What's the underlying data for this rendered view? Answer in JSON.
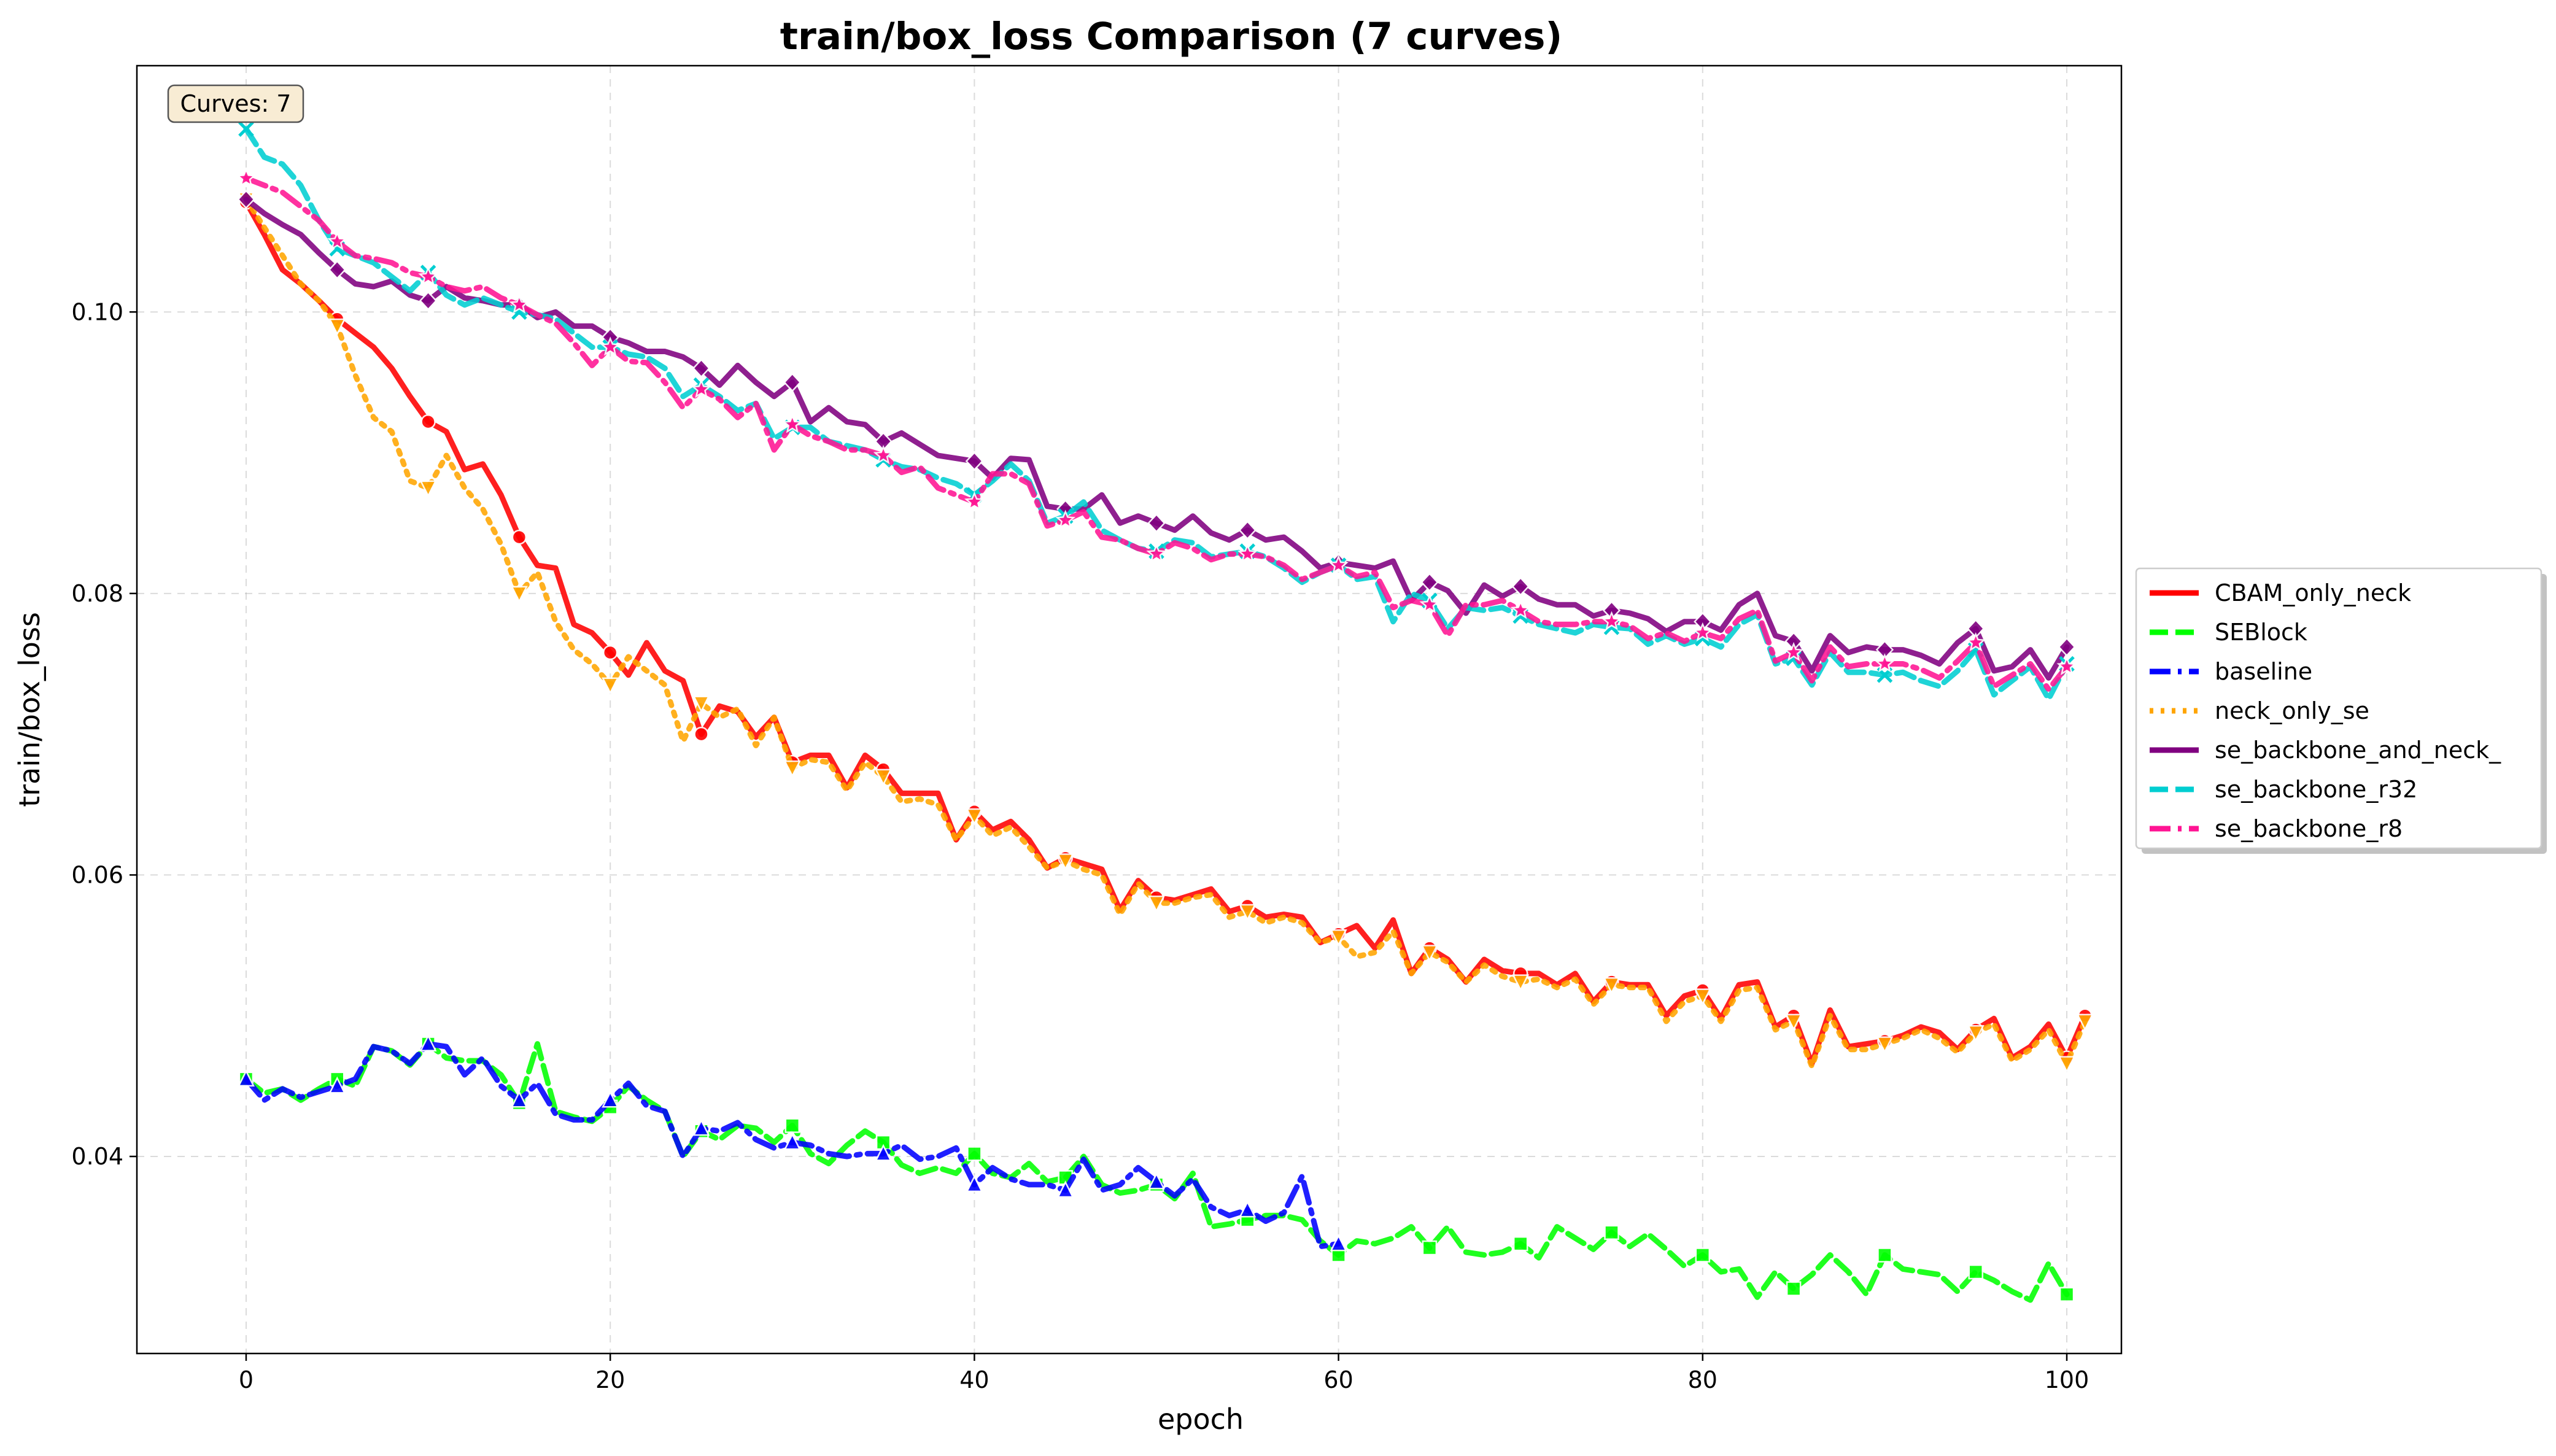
{
  "chart_data": {
    "type": "line",
    "title": "train/box_loss Comparison (7 curves)",
    "xlabel": "epoch",
    "ylabel": "train/box_loss",
    "xlim": [
      -6,
      103
    ],
    "ylim": [
      0.026,
      0.1175
    ],
    "xticks": [
      0,
      20,
      40,
      60,
      80,
      100
    ],
    "xtick_labels": [
      "0",
      "20",
      "40",
      "60",
      "80",
      "100"
    ],
    "yticks": [
      0.04,
      0.06,
      0.08,
      0.1
    ],
    "ytick_labels": [
      "0.04",
      "0.06",
      "0.08",
      "0.10"
    ],
    "grid": true,
    "legend_position": "outside-right",
    "annotation": "Curves: 7",
    "series": [
      {
        "name": "CBAM_only_neck",
        "color": "#ff0000",
        "line_style": "solid",
        "marker": "circle",
        "x_start": 0,
        "values": [
          0.1078,
          0.1055,
          0.103,
          0.102,
          0.1008,
          0.0995,
          0.0985,
          0.0975,
          0.096,
          0.094,
          0.0922,
          0.0915,
          0.0888,
          0.0892,
          0.087,
          0.084,
          0.082,
          0.0818,
          0.0778,
          0.0772,
          0.0758,
          0.0742,
          0.0765,
          0.0745,
          0.0738,
          0.07,
          0.072,
          0.0716,
          0.0698,
          0.0712,
          0.068,
          0.0685,
          0.0685,
          0.0662,
          0.0685,
          0.0675,
          0.0658,
          0.0658,
          0.0658,
          0.0625,
          0.0645,
          0.0632,
          0.0638,
          0.0625,
          0.0605,
          0.0612,
          0.0608,
          0.0604,
          0.0575,
          0.0596,
          0.0584,
          0.0582,
          0.0586,
          0.059,
          0.0574,
          0.0578,
          0.057,
          0.0572,
          0.057,
          0.0552,
          0.0558,
          0.0564,
          0.0548,
          0.0568,
          0.053,
          0.0548,
          0.054,
          0.0524,
          0.054,
          0.0532,
          0.053,
          0.053,
          0.0522,
          0.053,
          0.051,
          0.0524,
          0.0522,
          0.0522,
          0.05,
          0.0514,
          0.0518,
          0.0498,
          0.0522,
          0.0524,
          0.0492,
          0.05,
          0.0466,
          0.0504,
          0.0478,
          0.048,
          0.0482,
          0.0486,
          0.0492,
          0.0488,
          0.0476,
          0.049,
          0.0498,
          0.047,
          0.0478,
          0.0494,
          0.047,
          0.05
        ]
      },
      {
        "name": "SEBlock",
        "color": "#00ff00",
        "line_style": "dashed",
        "marker": "square",
        "x_start": 0,
        "values": [
          0.0455,
          0.0445,
          0.0448,
          0.044,
          0.0448,
          0.0455,
          0.045,
          0.0478,
          0.0475,
          0.0465,
          0.048,
          0.047,
          0.0468,
          0.0468,
          0.0458,
          0.0438,
          0.048,
          0.0432,
          0.0428,
          0.0425,
          0.0435,
          0.045,
          0.044,
          0.0432,
          0.04,
          0.0418,
          0.0412,
          0.0422,
          0.042,
          0.041,
          0.0422,
          0.0402,
          0.0395,
          0.0408,
          0.0418,
          0.041,
          0.0394,
          0.0388,
          0.0392,
          0.0388,
          0.0402,
          0.0388,
          0.0385,
          0.0395,
          0.0382,
          0.0385,
          0.04,
          0.038,
          0.0374,
          0.0376,
          0.038,
          0.037,
          0.0388,
          0.035,
          0.0352,
          0.0355,
          0.0358,
          0.0358,
          0.0355,
          0.034,
          0.033,
          0.034,
          0.0338,
          0.0342,
          0.035,
          0.0335,
          0.035,
          0.0332,
          0.033,
          0.0332,
          0.0338,
          0.0328,
          0.035,
          0.0342,
          0.0334,
          0.0346,
          0.0336,
          0.0345,
          0.0334,
          0.0322,
          0.033,
          0.0318,
          0.032,
          0.03,
          0.0318,
          0.0306,
          0.0316,
          0.033,
          0.0318,
          0.0302,
          0.033,
          0.032,
          0.0318,
          0.0316,
          0.0304,
          0.0318,
          0.0312,
          0.0304,
          0.0298,
          0.0324,
          0.0302
        ]
      },
      {
        "name": "baseline",
        "color": "#0000ff",
        "line_style": "dash-dot",
        "marker": "triangle",
        "x_start": 0,
        "values": [
          0.0455,
          0.044,
          0.0448,
          0.0442,
          0.0446,
          0.045,
          0.0455,
          0.0478,
          0.0475,
          0.0466,
          0.048,
          0.0478,
          0.0458,
          0.047,
          0.045,
          0.044,
          0.0452,
          0.043,
          0.0426,
          0.0426,
          0.044,
          0.0452,
          0.0436,
          0.0432,
          0.04,
          0.042,
          0.0418,
          0.0424,
          0.0412,
          0.0406,
          0.041,
          0.0408,
          0.0402,
          0.04,
          0.0402,
          0.0402,
          0.0408,
          0.0398,
          0.04,
          0.0406,
          0.038,
          0.0392,
          0.0384,
          0.038,
          0.038,
          0.0376,
          0.0398,
          0.0376,
          0.038,
          0.0392,
          0.0382,
          0.0372,
          0.0384,
          0.0364,
          0.0358,
          0.0362,
          0.0354,
          0.036,
          0.0386,
          0.0336,
          0.0338
        ]
      },
      {
        "name": "neck_only_se",
        "color": "#ffa500",
        "line_style": "dotted",
        "marker": "triangle-down",
        "x_start": 0,
        "values": [
          0.108,
          0.106,
          0.104,
          0.102,
          0.1008,
          0.099,
          0.0955,
          0.0925,
          0.0915,
          0.088,
          0.0875,
          0.0898,
          0.0875,
          0.086,
          0.0835,
          0.08,
          0.0815,
          0.078,
          0.076,
          0.075,
          0.0735,
          0.0755,
          0.0745,
          0.0735,
          0.0695,
          0.0722,
          0.0712,
          0.0718,
          0.0692,
          0.0712,
          0.0676,
          0.0682,
          0.068,
          0.066,
          0.068,
          0.067,
          0.0652,
          0.0654,
          0.065,
          0.0625,
          0.0642,
          0.0628,
          0.0634,
          0.062,
          0.0605,
          0.061,
          0.0604,
          0.06,
          0.0572,
          0.0594,
          0.058,
          0.058,
          0.0584,
          0.0586,
          0.057,
          0.0574,
          0.0566,
          0.057,
          0.0566,
          0.0552,
          0.0556,
          0.0542,
          0.0545,
          0.056,
          0.053,
          0.0545,
          0.0538,
          0.0524,
          0.0536,
          0.0528,
          0.0524,
          0.0526,
          0.052,
          0.0526,
          0.0508,
          0.0522,
          0.052,
          0.052,
          0.0496,
          0.051,
          0.0514,
          0.0496,
          0.0518,
          0.052,
          0.049,
          0.0496,
          0.0464,
          0.05,
          0.0476,
          0.0476,
          0.048,
          0.0484,
          0.049,
          0.0484,
          0.0474,
          0.0488,
          0.0494,
          0.0468,
          0.0476,
          0.049,
          0.0466,
          0.0496
        ]
      },
      {
        "name": "se_backbone_and_neck_",
        "color": "#800080",
        "line_style": "solid",
        "marker": "diamond",
        "x_start": 0,
        "values": [
          0.108,
          0.107,
          0.1062,
          0.1055,
          0.1042,
          0.103,
          0.102,
          0.1018,
          0.1022,
          0.1012,
          0.1008,
          0.1018,
          0.101,
          0.1008,
          0.1005,
          0.1005,
          0.0996,
          0.1,
          0.099,
          0.099,
          0.0982,
          0.0978,
          0.0972,
          0.0972,
          0.0968,
          0.096,
          0.0948,
          0.0962,
          0.095,
          0.094,
          0.095,
          0.0922,
          0.0932,
          0.0922,
          0.092,
          0.0908,
          0.0914,
          0.0906,
          0.0898,
          0.0896,
          0.0894,
          0.0882,
          0.0896,
          0.0895,
          0.0862,
          0.086,
          0.086,
          0.087,
          0.085,
          0.0855,
          0.085,
          0.0845,
          0.0855,
          0.0843,
          0.0838,
          0.0845,
          0.0838,
          0.084,
          0.083,
          0.0818,
          0.0822,
          0.082,
          0.0818,
          0.0823,
          0.0795,
          0.0808,
          0.0802,
          0.0786,
          0.0806,
          0.0798,
          0.0805,
          0.0796,
          0.0792,
          0.0792,
          0.0784,
          0.0788,
          0.0786,
          0.0782,
          0.0773,
          0.078,
          0.078,
          0.0774,
          0.0792,
          0.08,
          0.077,
          0.0766,
          0.0745,
          0.077,
          0.0758,
          0.0762,
          0.076,
          0.076,
          0.0756,
          0.075,
          0.0765,
          0.0775,
          0.0745,
          0.0748,
          0.076,
          0.074,
          0.0762
        ]
      },
      {
        "name": "se_backbone_r32",
        "color": "#00ced1",
        "line_style": "dashed",
        "marker": "x",
        "x_start": 0,
        "values": [
          0.113,
          0.111,
          0.1105,
          0.109,
          0.1065,
          0.1045,
          0.104,
          0.1035,
          0.1025,
          0.1015,
          0.1028,
          0.1012,
          0.1005,
          0.101,
          0.1005,
          0.1,
          0.0998,
          0.0995,
          0.0985,
          0.0975,
          0.0975,
          0.097,
          0.0968,
          0.096,
          0.094,
          0.0948,
          0.094,
          0.093,
          0.0935,
          0.091,
          0.0918,
          0.0918,
          0.0908,
          0.0905,
          0.0902,
          0.0895,
          0.089,
          0.0888,
          0.0882,
          0.0878,
          0.087,
          0.088,
          0.0892,
          0.088,
          0.085,
          0.0855,
          0.0865,
          0.0845,
          0.0838,
          0.0832,
          0.083,
          0.0838,
          0.0836,
          0.0826,
          0.0828,
          0.083,
          0.0826,
          0.0818,
          0.0808,
          0.0815,
          0.082,
          0.081,
          0.0812,
          0.078,
          0.08,
          0.0795,
          0.0775,
          0.079,
          0.0788,
          0.079,
          0.0784,
          0.0778,
          0.0775,
          0.0772,
          0.0778,
          0.0776,
          0.0775,
          0.0764,
          0.077,
          0.0764,
          0.0768,
          0.0762,
          0.0778,
          0.0785,
          0.075,
          0.0754,
          0.0735,
          0.0758,
          0.0744,
          0.0744,
          0.0742,
          0.0744,
          0.0738,
          0.0734,
          0.0745,
          0.076,
          0.0728,
          0.0738,
          0.0748,
          0.0725,
          0.075
        ]
      },
      {
        "name": "se_backbone_r8",
        "color": "#ff1493",
        "line_style": "dash-dot",
        "marker": "star",
        "x_start": 0,
        "values": [
          0.1095,
          0.109,
          0.1085,
          0.1075,
          0.1065,
          0.105,
          0.104,
          0.1038,
          0.1035,
          0.1028,
          0.1025,
          0.1018,
          0.1015,
          0.1018,
          0.101,
          0.1005,
          0.0998,
          0.0992,
          0.0978,
          0.0962,
          0.0975,
          0.0965,
          0.0964,
          0.095,
          0.0932,
          0.0945,
          0.0938,
          0.0925,
          0.0935,
          0.0902,
          0.092,
          0.0912,
          0.0908,
          0.0902,
          0.0902,
          0.0898,
          0.0886,
          0.089,
          0.0875,
          0.087,
          0.0865,
          0.0885,
          0.0885,
          0.0878,
          0.0848,
          0.0852,
          0.0858,
          0.084,
          0.0838,
          0.0832,
          0.0828,
          0.0836,
          0.0832,
          0.0824,
          0.0828,
          0.0828,
          0.0826,
          0.082,
          0.081,
          0.0815,
          0.082,
          0.0812,
          0.0815,
          0.079,
          0.0795,
          0.0792,
          0.077,
          0.0792,
          0.0792,
          0.0795,
          0.0788,
          0.078,
          0.0778,
          0.0778,
          0.078,
          0.078,
          0.0777,
          0.0768,
          0.0772,
          0.0766,
          0.0772,
          0.0768,
          0.0782,
          0.0788,
          0.0752,
          0.0758,
          0.0738,
          0.0762,
          0.0748,
          0.075,
          0.075,
          0.075,
          0.0746,
          0.074,
          0.0752,
          0.0765,
          0.0734,
          0.0742,
          0.075,
          0.0732,
          0.0748
        ]
      }
    ]
  }
}
